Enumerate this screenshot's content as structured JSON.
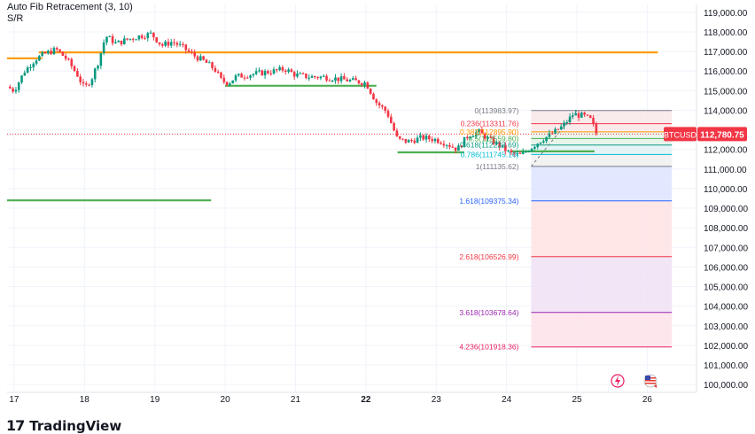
{
  "indicators": {
    "fib_title": "Auto Fib Retracement (3, 10)",
    "sr_title": "S/R"
  },
  "brand": {
    "name": "TradingView"
  },
  "colors": {
    "up": "#089981",
    "down": "#f23645",
    "resistance": "#ff9800",
    "support": "#4caf50",
    "price_tag": "#f23645"
  },
  "chart_data": {
    "type": "candlestick",
    "symbol": "BTCUSD",
    "last_price_label": "112,780.75",
    "last_price": 112780.75,
    "ylim": [
      99600,
      119400
    ],
    "y_ticks": [
      100000,
      101000,
      102000,
      103000,
      104000,
      105000,
      106000,
      107000,
      108000,
      109000,
      110000,
      111000,
      112000,
      113000,
      114000,
      115000,
      116000,
      117000,
      118000,
      119000
    ],
    "y_tick_labels": [
      "100,000.00",
      "101,000.00",
      "102,000.00",
      "103,000.00",
      "104,000.00",
      "105,000.00",
      "106,000.00",
      "107,000.00",
      "108,000.00",
      "109,000.00",
      "110,000.00",
      "111,000.00",
      "112,000.00",
      "113,000.00",
      "114,000.00",
      "115,000.00",
      "116,000.00",
      "117,000.00",
      "118,000.00",
      "119,000.00"
    ],
    "x_range": [
      16.9,
      26.7
    ],
    "x_ticks": [
      17,
      18,
      19,
      20,
      21,
      22,
      23,
      24,
      25,
      26
    ],
    "x_tick_labels": [
      "17",
      "18",
      "19",
      "20",
      "21",
      "22",
      "23",
      "24",
      "25",
      "26"
    ],
    "x_bold_ticks": [
      "22"
    ],
    "close_path": [
      [
        16.9,
        115200
      ],
      [
        17.0,
        115000
      ],
      [
        17.15,
        116000
      ],
      [
        17.3,
        116600
      ],
      [
        17.45,
        116900
      ],
      [
        17.6,
        117100
      ],
      [
        17.75,
        116600
      ],
      [
        17.9,
        115800
      ],
      [
        18.0,
        115100
      ],
      [
        18.1,
        115600
      ],
      [
        18.2,
        116500
      ],
      [
        18.3,
        117800
      ],
      [
        18.45,
        117400
      ],
      [
        18.6,
        117600
      ],
      [
        18.8,
        117800
      ],
      [
        18.95,
        117900
      ],
      [
        19.1,
        117300
      ],
      [
        19.25,
        117500
      ],
      [
        19.4,
        117200
      ],
      [
        19.55,
        116800
      ],
      [
        19.7,
        116500
      ],
      [
        19.85,
        116100
      ],
      [
        19.95,
        115500
      ],
      [
        20.05,
        115400
      ],
      [
        20.15,
        115700
      ],
      [
        20.3,
        115800
      ],
      [
        20.5,
        115900
      ],
      [
        20.7,
        116000
      ],
      [
        20.85,
        116100
      ],
      [
        21.0,
        115800
      ],
      [
        21.2,
        115700
      ],
      [
        21.4,
        115700
      ],
      [
        21.6,
        115600
      ],
      [
        21.8,
        115500
      ],
      [
        22.0,
        115400
      ],
      [
        22.15,
        114400
      ],
      [
        22.3,
        113900
      ],
      [
        22.45,
        112500
      ],
      [
        22.6,
        112400
      ],
      [
        22.8,
        112600
      ],
      [
        23.0,
        112500
      ],
      [
        23.15,
        112300
      ],
      [
        23.3,
        112000
      ],
      [
        23.45,
        112700
      ],
      [
        23.6,
        112900
      ],
      [
        23.75,
        112500
      ],
      [
        23.9,
        112200
      ],
      [
        24.05,
        111800
      ],
      [
        24.2,
        111700
      ],
      [
        24.35,
        112100
      ],
      [
        24.5,
        112500
      ],
      [
        24.65,
        112800
      ],
      [
        24.8,
        113200
      ],
      [
        24.95,
        113800
      ],
      [
        25.1,
        113700
      ],
      [
        25.2,
        113500
      ],
      [
        25.28,
        112780
      ]
    ],
    "fib_levels": [
      {
        "ratio": "0",
        "price": 113983.97,
        "label": "0(113983.97)"
      },
      {
        "ratio": "0.236",
        "price": 113311.76,
        "label": "0.236(113311.76)"
      },
      {
        "ratio": "0.382",
        "price": 112895.9,
        "label": "0.382(112895.90)"
      },
      {
        "ratio": "0.5",
        "price": 112559.8,
        "label": "0.5(112559.80)"
      },
      {
        "ratio": "0.618",
        "price": 112223.69,
        "label": "0.618(112223.69)"
      },
      {
        "ratio": "0.786",
        "price": 111745.16,
        "label": "0.786(111745.16)"
      },
      {
        "ratio": "1",
        "price": 111135.62,
        "label": "1(111135.62)"
      },
      {
        "ratio": "1.618",
        "price": 109375.34,
        "label": "1.618(109375.34)"
      },
      {
        "ratio": "2.618",
        "price": 106526.99,
        "label": "2.618(106526.99)"
      },
      {
        "ratio": "3.618",
        "price": 103678.64,
        "label": "3.618(103678.64)"
      },
      {
        "ratio": "4.236",
        "price": 101918.36,
        "label": "4.236(101918.36)"
      }
    ],
    "fib_x_range": [
      24.35,
      26.35
    ],
    "sr_lines": [
      {
        "kind": "resistance",
        "price": 116650,
        "x0": 16.9,
        "x1": 17.4
      },
      {
        "kind": "resistance",
        "price": 116950,
        "x0": 17.35,
        "x1": 26.15
      },
      {
        "kind": "support",
        "price": 115250,
        "x0": 20.0,
        "x1": 22.15
      },
      {
        "kind": "support",
        "price": 111850,
        "x0": 22.45,
        "x1": 23.4
      },
      {
        "kind": "support",
        "price": 111900,
        "x0": 24.05,
        "x1": 25.25
      },
      {
        "kind": "support",
        "price": 109400,
        "x0": 16.9,
        "x1": 19.8
      }
    ],
    "grid": true,
    "legend": "none"
  }
}
